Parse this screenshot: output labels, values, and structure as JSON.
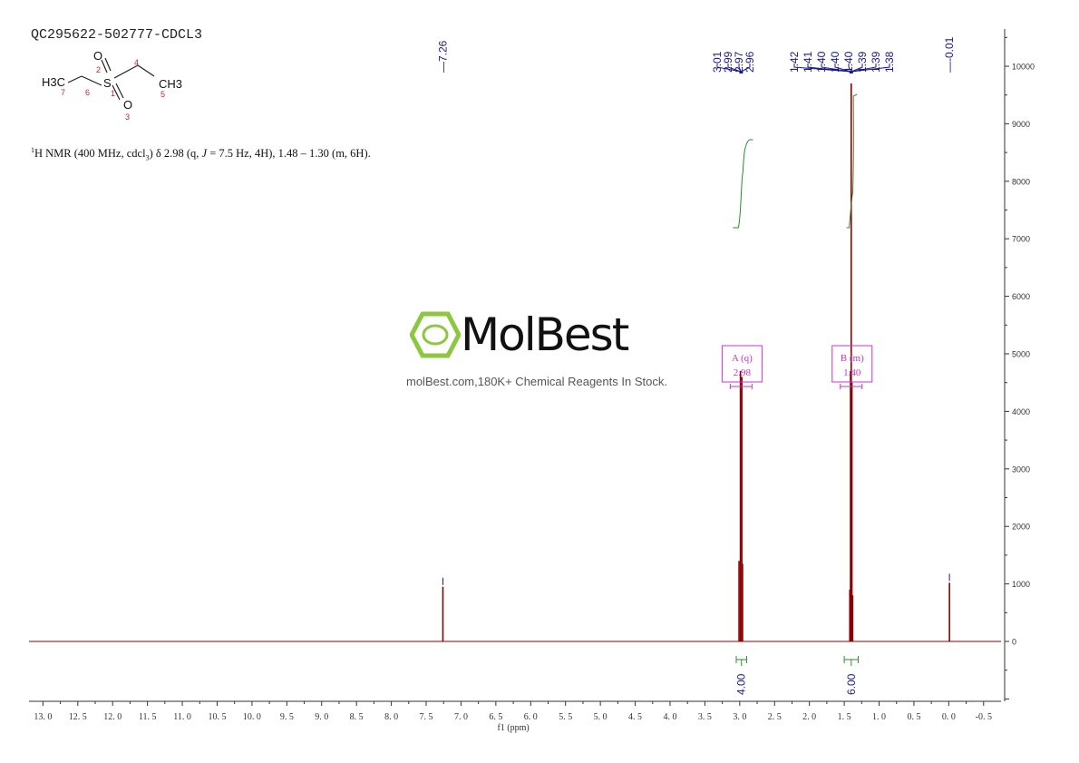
{
  "sample_id": "QC295622-502777-CDCL3",
  "nmr_description": {
    "nucleus_sup": "1",
    "text": "H NMR (400 MHz, cdcl",
    "sub": "3",
    "text2": ") δ 2.98 (q, ",
    "j": "J",
    "text3": " = 7.5 Hz, 4H), 1.48 – 1.30 (m, 6H)."
  },
  "structure": {
    "atoms": [
      "H3C",
      "S",
      "O",
      "O",
      "CH3"
    ],
    "numbers": [
      "7",
      "6",
      "2",
      "1",
      "3",
      "4",
      "5"
    ]
  },
  "watermark": {
    "name": "MolBest",
    "tagline": "molBest.com,180K+ Chemical Reagents In Stock."
  },
  "colors": {
    "spectrum": "#8b0000",
    "peak_labels": "#1a1a8c",
    "integral": "#2e8b2e",
    "multiplet_box": "#cc33cc",
    "axis": "#333333"
  },
  "chart_data": {
    "type": "line",
    "xlabel": "f1 (ppm)",
    "x_reversed": true,
    "xlim": [
      13.2,
      -0.75
    ],
    "ylim": [
      -1000,
      10600
    ],
    "x_ticks": [
      "13.0",
      "12.5",
      "12.0",
      "11.5",
      "11.0",
      "10.5",
      "10.0",
      "9.5",
      "9.0",
      "8.5",
      "8.0",
      "7.5",
      "7.0",
      "6.5",
      "6.0",
      "5.5",
      "5.0",
      "4.5",
      "4.0",
      "3.5",
      "3.0",
      "2.5",
      "2.0",
      "1.5",
      "1.0",
      "0.5",
      "0.0",
      "-0.5"
    ],
    "y_ticks": [
      "10000",
      "9000",
      "8000",
      "7000",
      "6000",
      "5000",
      "4000",
      "3000",
      "2000",
      "1000",
      "0"
    ],
    "peak_labels": [
      {
        "group": "single",
        "labels": [
          "7.26"
        ]
      },
      {
        "group": "quartet",
        "labels": [
          "3.01",
          "2.99",
          "2.97",
          "2.96"
        ]
      },
      {
        "group": "multiplet",
        "labels": [
          "1.42",
          "1.41",
          "1.40",
          "1.40",
          "1.40",
          "1.39",
          "1.39",
          "1.38"
        ]
      },
      {
        "group": "single",
        "labels": [
          "-0.01"
        ]
      }
    ],
    "peaks": [
      {
        "ppm": 7.26,
        "height": 950
      },
      {
        "ppm": 3.01,
        "height": 1400
      },
      {
        "ppm": 2.99,
        "height": 4700
      },
      {
        "ppm": 2.97,
        "height": 4600
      },
      {
        "ppm": 2.96,
        "height": 1350
      },
      {
        "ppm": 1.42,
        "height": 900
      },
      {
        "ppm": 1.41,
        "height": 4700
      },
      {
        "ppm": 1.4,
        "height": 9700
      },
      {
        "ppm": 1.39,
        "height": 4500
      },
      {
        "ppm": 1.38,
        "height": 800
      },
      {
        "ppm": -0.01,
        "height": 1020
      }
    ],
    "multiplets": [
      {
        "label": "A (q)",
        "shift": "2.98"
      },
      {
        "label": "B (m)",
        "shift": "1.40"
      }
    ],
    "integrals": [
      {
        "value": "4.00",
        "from": 3.05,
        "to": 2.9
      },
      {
        "value": "6.00",
        "from": 1.5,
        "to": 1.3
      }
    ]
  }
}
